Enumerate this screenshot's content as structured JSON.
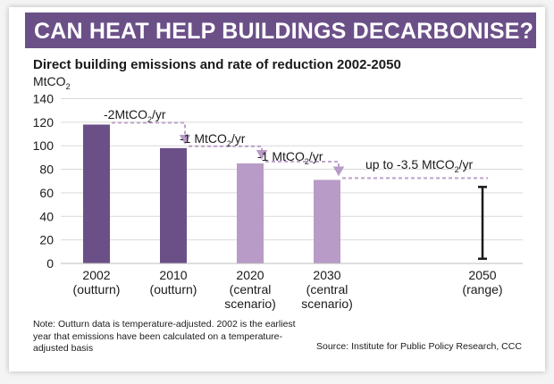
{
  "header": {
    "title": "CAN HEAT HELP BUILDINGS DECARBONISE?"
  },
  "chart_data": {
    "type": "bar",
    "title": "Direct building emissions and rate of reduction 2002-2050",
    "ylabel": "MtCO2",
    "ylabel_parts": {
      "base": "MtCO",
      "sub": "2"
    },
    "ylim": [
      0,
      140
    ],
    "yticks": [
      0,
      20,
      40,
      60,
      80,
      100,
      120,
      140
    ],
    "categories": [
      {
        "year": "2002",
        "note": "(outturn)"
      },
      {
        "year": "2010",
        "note": "(outturn)"
      },
      {
        "year": "2020",
        "note": "(central scenario)"
      },
      {
        "year": "2030",
        "note": "(central scenario)"
      },
      {
        "year": "2050",
        "note": "(range)"
      }
    ],
    "values": [
      118,
      98,
      85,
      71,
      null
    ],
    "bar_colors": [
      "#6b5088",
      "#6b5088",
      "#b89bc6",
      "#b89bc6",
      null
    ],
    "range_2050": {
      "low": 4,
      "high": 65
    },
    "rate_annotations": [
      {
        "prefix": "-2MtCO",
        "sub": "2",
        "suffix": "/yr"
      },
      {
        "prefix": "-1 MtCO",
        "sub": "2",
        "suffix": "/yr"
      },
      {
        "prefix": "-1 MtCO",
        "sub": "2",
        "suffix": "/yr"
      },
      {
        "prefix": "up to -3.5 MtCO",
        "sub": "2",
        "suffix": "/yr"
      }
    ],
    "colors": {
      "outturn": "#6b5088",
      "scenario": "#b89bc6",
      "range": "#1a1a1a",
      "grid": "#d9d9d9"
    }
  },
  "footer": {
    "note": "Note: Outturn data is temperature-adjusted. 2002 is the earliest year that emissions have been calculated on a temperature-adjusted basis",
    "source": "Source: Institute for Public Policy Research, CCC"
  }
}
